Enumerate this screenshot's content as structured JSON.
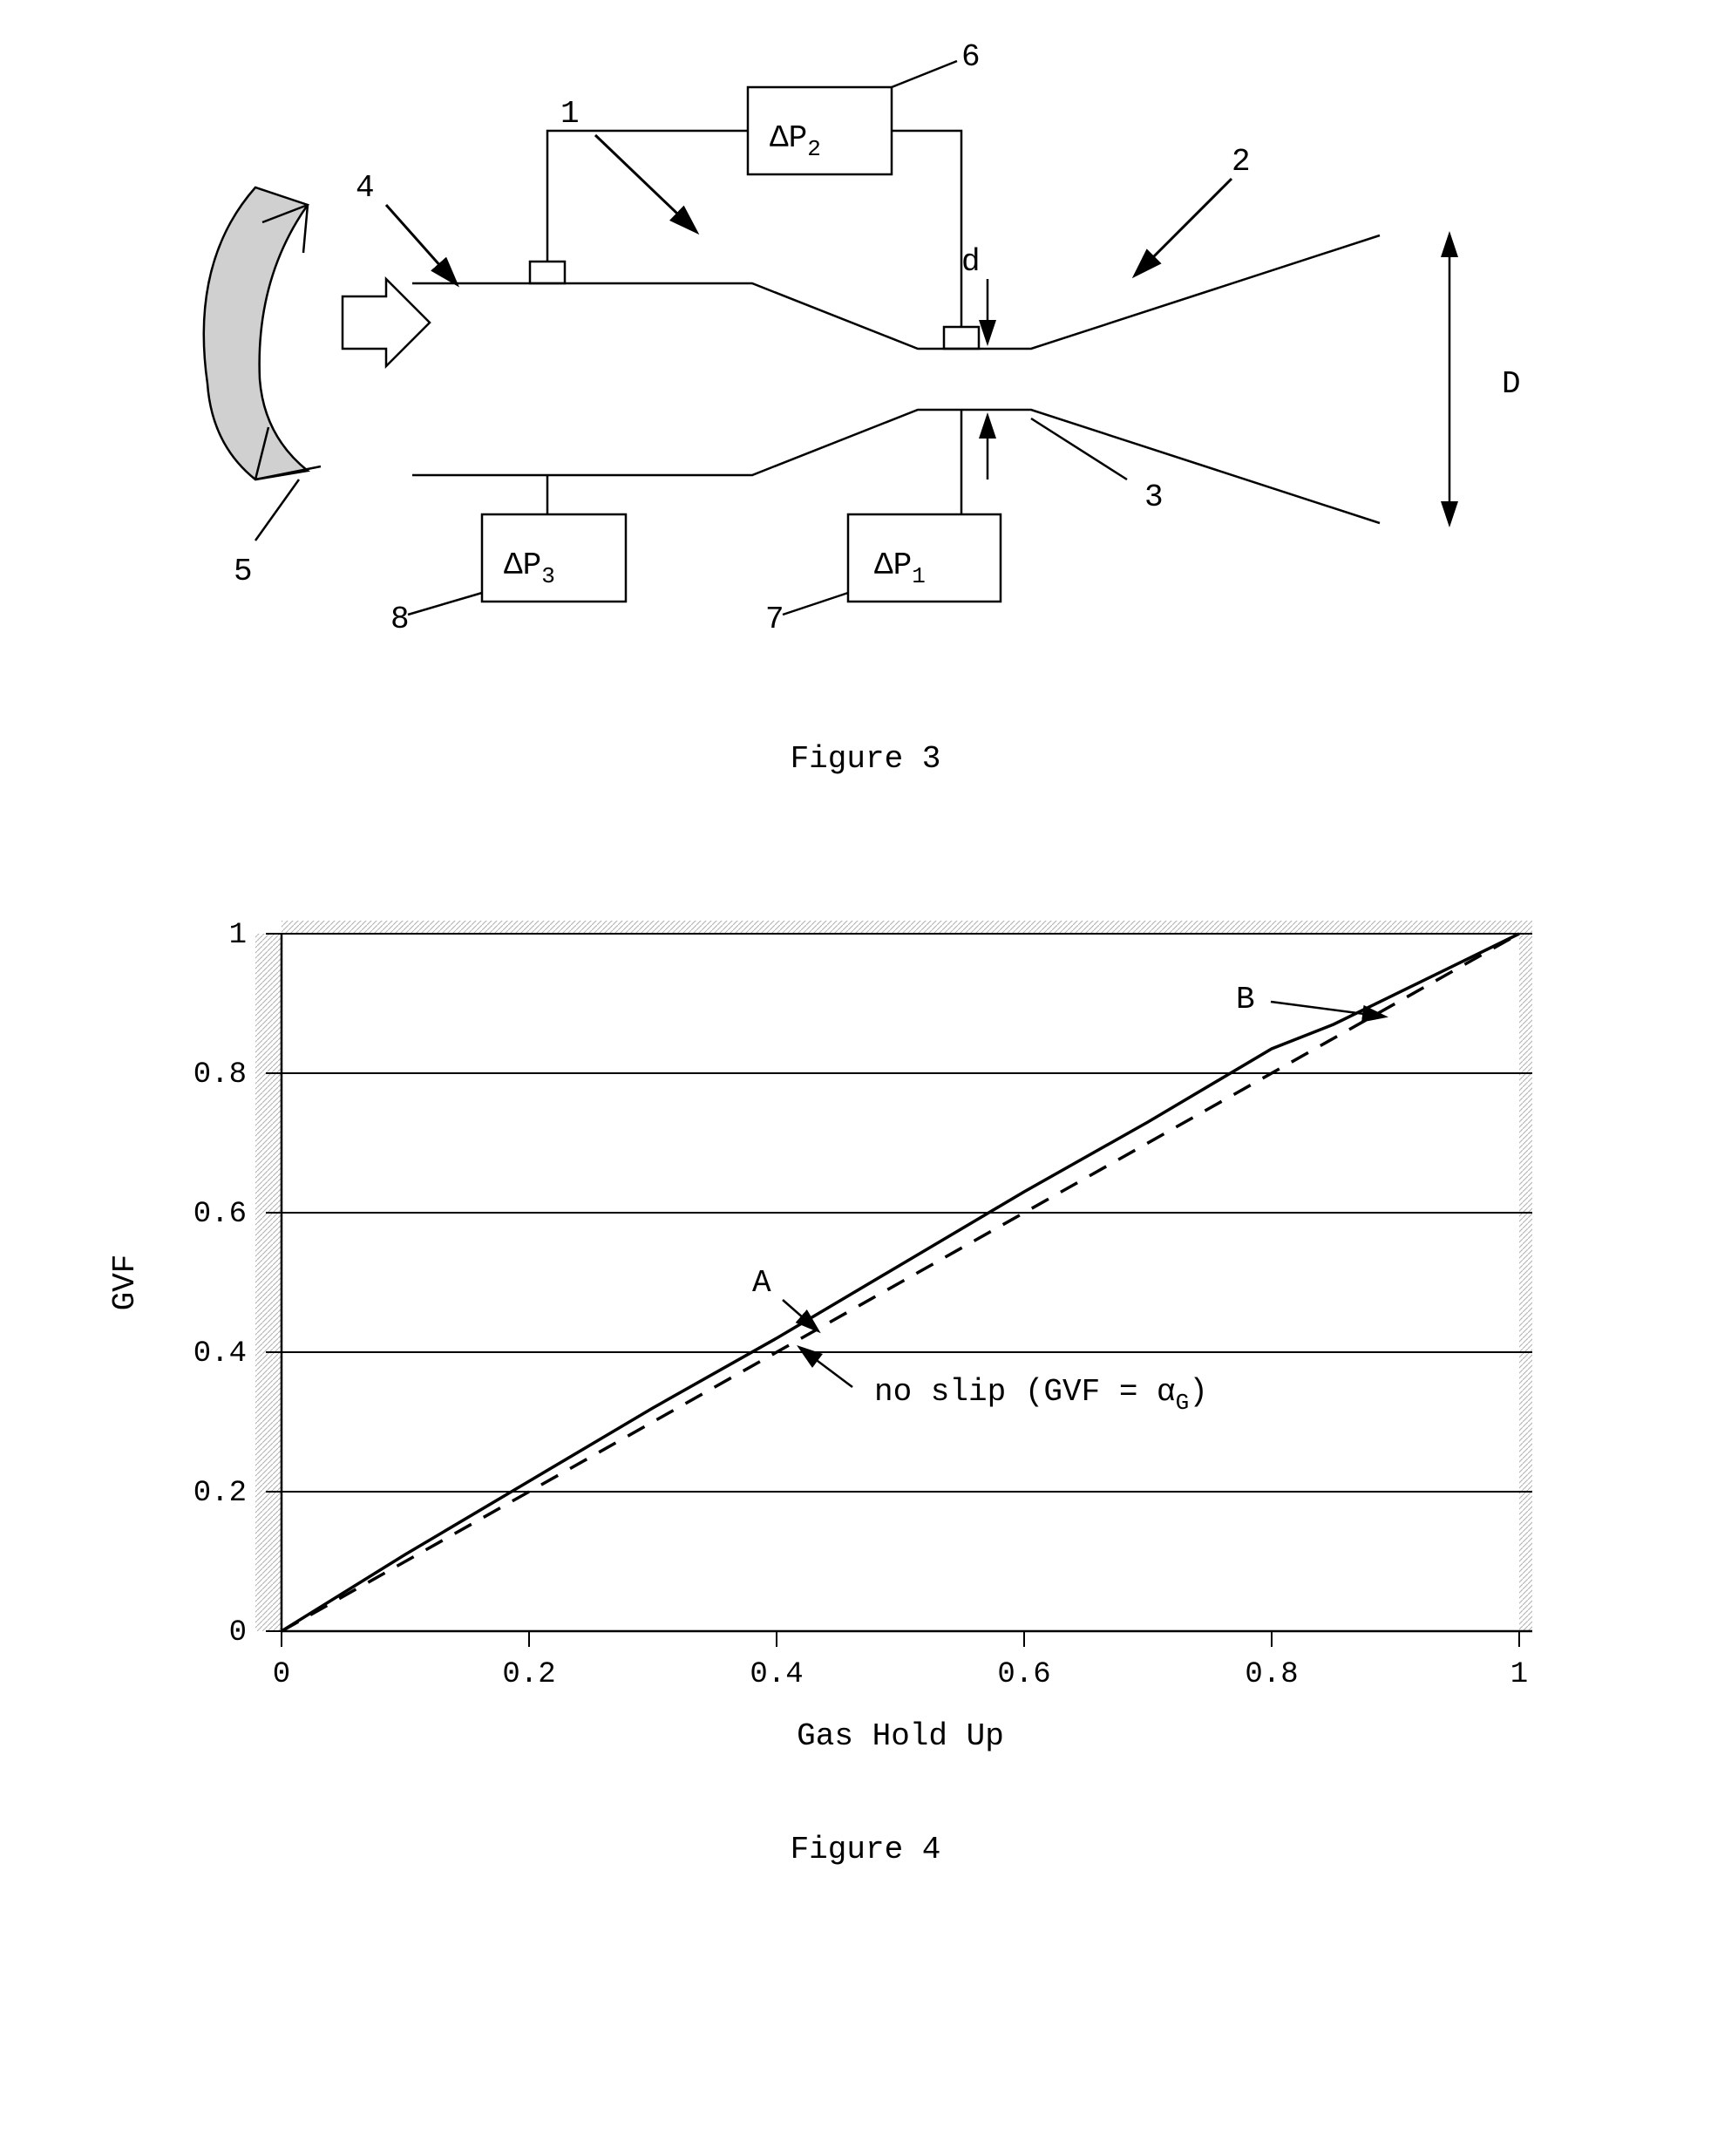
{
  "figure3": {
    "caption": "Figure 3",
    "labels": {
      "ref1": "1",
      "ref2": "2",
      "ref3": "3",
      "ref4": "4",
      "ref5": "5",
      "ref6": "6",
      "ref7": "7",
      "ref8": "8",
      "d": "d",
      "D": "D",
      "dp1": "ΔP",
      "dp1_sub": "1",
      "dp2": "ΔP",
      "dp2_sub": "2",
      "dp3": "ΔP",
      "dp3_sub": "3"
    },
    "style": {
      "stroke_color": "#000000",
      "stroke_width": 2.5,
      "font_size": 36,
      "crescent_fill": "#d0d0d0"
    }
  },
  "figure4": {
    "caption": "Figure 4",
    "type": "line",
    "xlabel": "Gas Hold Up",
    "ylabel": "GVF",
    "xlim": [
      0,
      1
    ],
    "ylim": [
      0,
      1
    ],
    "xticks": [
      0,
      0.2,
      0.4,
      0.6,
      0.8,
      1
    ],
    "yticks": [
      0,
      0.2,
      0.4,
      0.6,
      0.8,
      1
    ],
    "series": {
      "solid": {
        "x": [
          0,
          0.1,
          0.2,
          0.3,
          0.4,
          0.5,
          0.6,
          0.7,
          0.8,
          0.85,
          1
        ],
        "y": [
          0,
          0.11,
          0.215,
          0.32,
          0.42,
          0.525,
          0.63,
          0.73,
          0.835,
          0.87,
          1
        ],
        "stroke": "#000000",
        "stroke_width": 3.5,
        "dash": "none"
      },
      "dashed": {
        "x": [
          0,
          1
        ],
        "y": [
          0,
          1
        ],
        "stroke": "#000000",
        "stroke_width": 3.5,
        "dash": "22 16"
      }
    },
    "annotations": {
      "A": "A",
      "B": "B",
      "noslip": "no slip (GVF = α",
      "noslip_sub": "G",
      "noslip_end": ")"
    },
    "style": {
      "bg": "#ffffff",
      "axis_color": "#000000",
      "grid_color": "#000000",
      "hatch_color": "#b0b0b0",
      "font_size": 34,
      "tick_font_size": 34,
      "label_font_size": 36
    }
  }
}
